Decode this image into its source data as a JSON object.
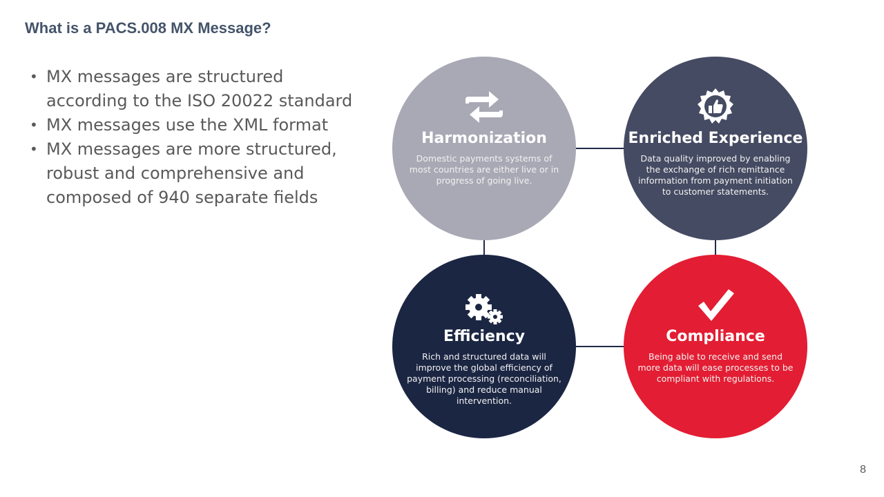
{
  "slide": {
    "title": "What is a PACS.008 MX Message?",
    "page_number": "8"
  },
  "bullets": [
    "MX messages are structured according to the ISO 20022 standard",
    "MX messages use the XML format",
    "MX messages are more structured, robust and comprehensive and composed of 940 separate fields"
  ],
  "cards": {
    "harmonization": {
      "title": "Harmonization",
      "description": "Domestic payments systems of most countries are either live or in progress of going live.",
      "icon": "sync-arrows-icon",
      "color": "#a9a8b5"
    },
    "enriched": {
      "title": "Enriched Experience",
      "description": "Data quality improved by enabling the exchange of rich remittance information from payment initiation to customer statements.",
      "icon": "thumbs-up-badge-icon",
      "color": "#454b62"
    },
    "efficiency": {
      "title": "Efficiency",
      "description": "Rich and structured data will improve the global efficiency of payment processing (reconciliation, billing) and reduce manual intervention.",
      "icon": "gears-icon",
      "color": "#1b2643"
    },
    "compliance": {
      "title": "Compliance",
      "description": "Being able to receive and send more data will ease processes to be compliant with regulations.",
      "icon": "checkmark-icon",
      "color": "#e31d33"
    }
  }
}
